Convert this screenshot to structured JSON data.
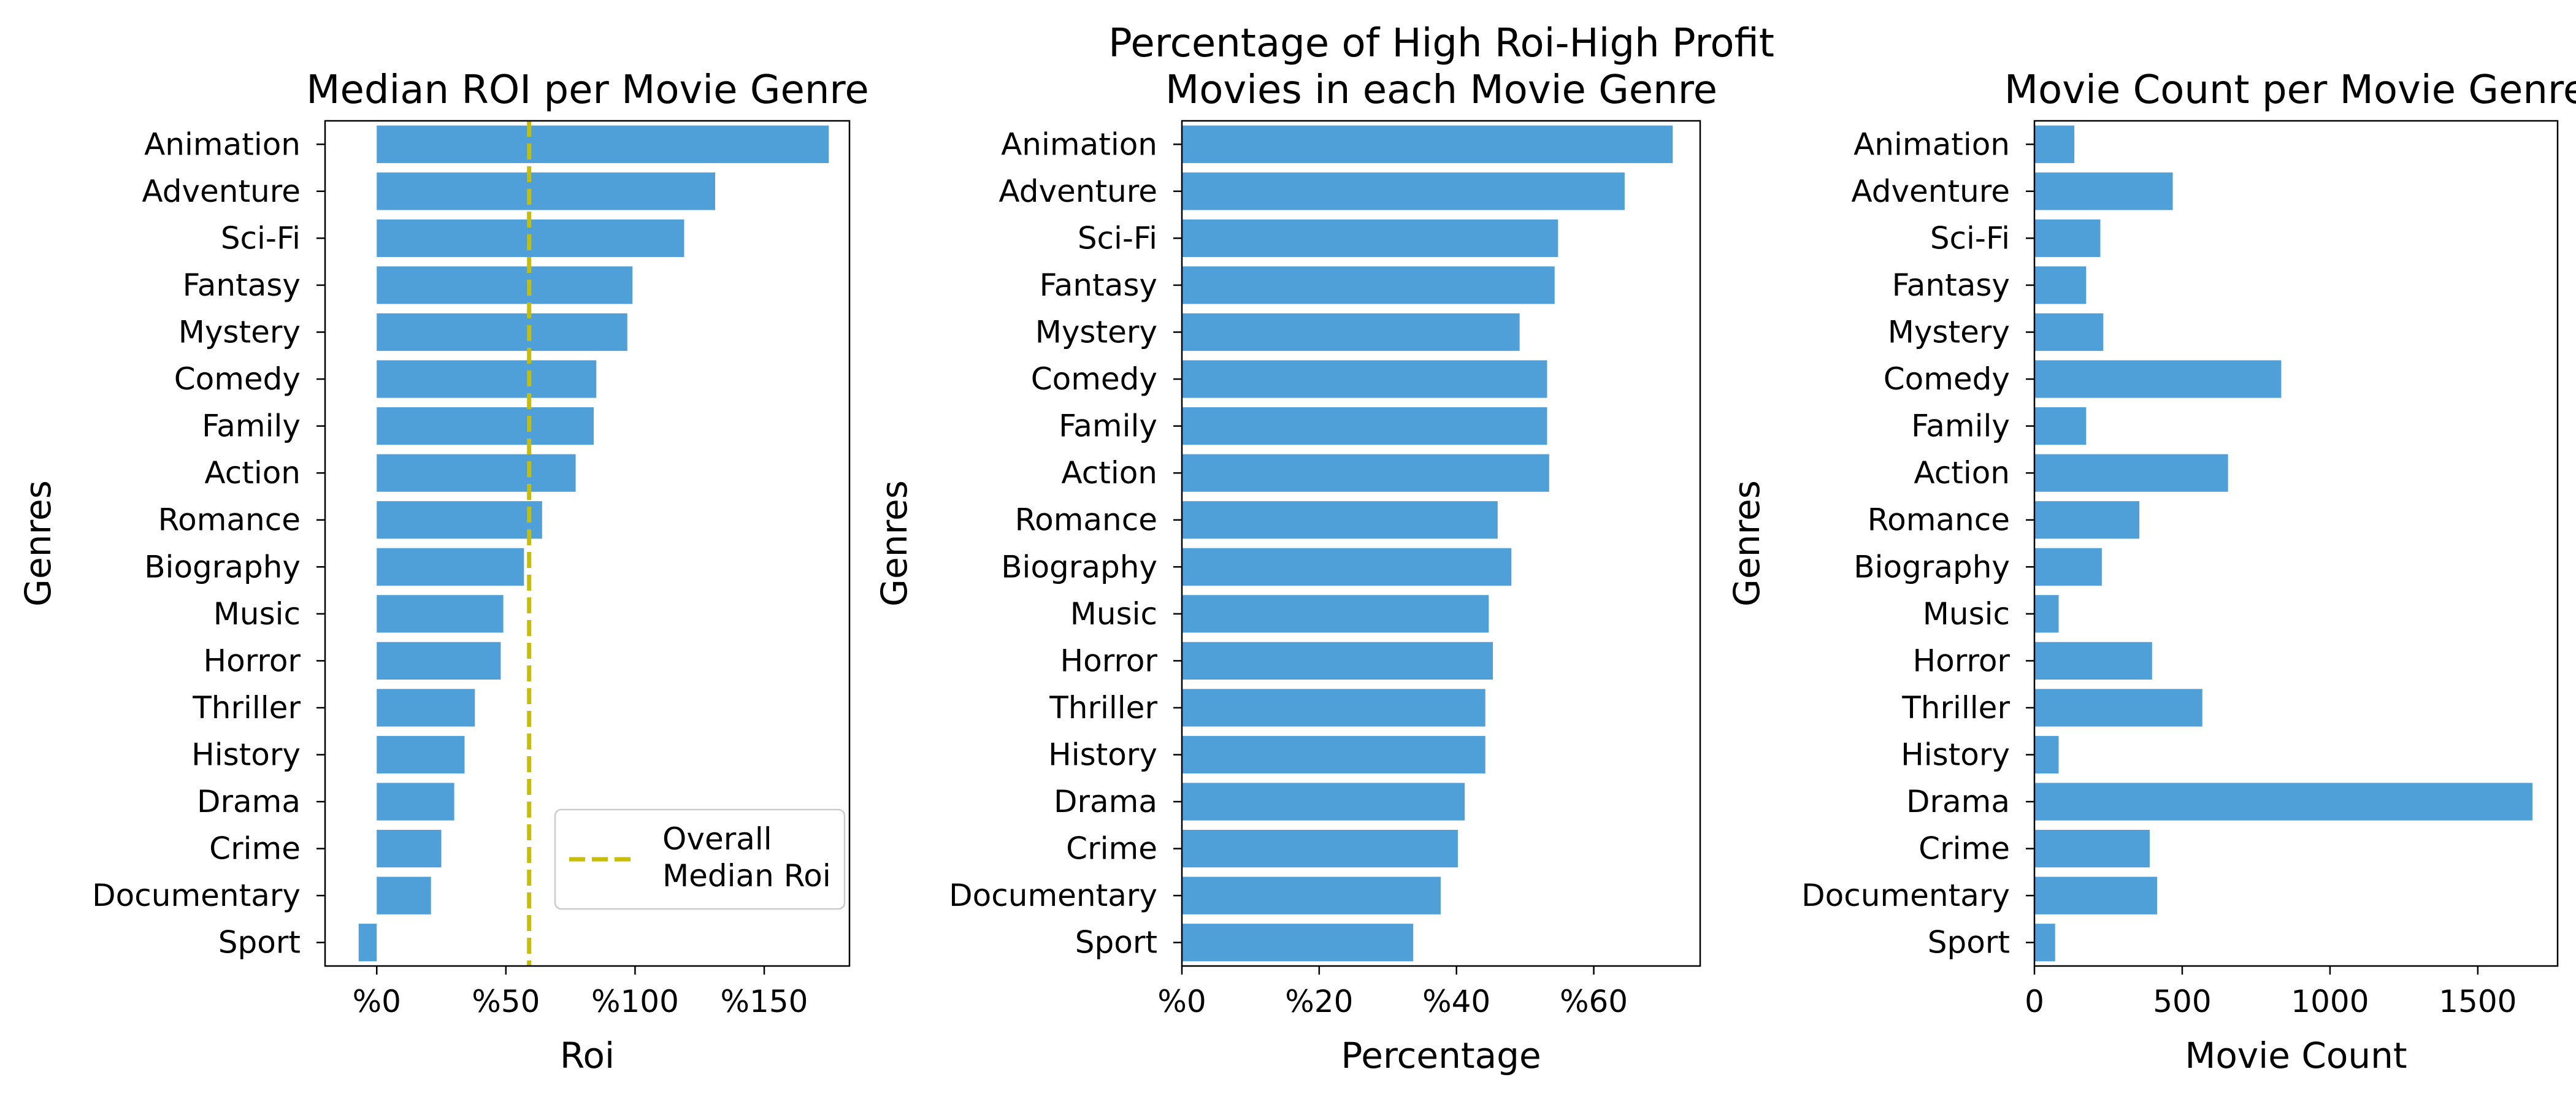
{
  "chart_data": [
    {
      "type": "bar",
      "orientation": "horizontal",
      "title": "Median ROI per Movie Genre",
      "xlabel": "Roi",
      "ylabel": "Genres",
      "categories": [
        "Animation",
        "Adventure",
        "Sci-Fi",
        "Fantasy",
        "Mystery",
        "Comedy",
        "Family",
        "Action",
        "Romance",
        "Biography",
        "Music",
        "Horror",
        "Thriller",
        "History",
        "Drama",
        "Crime",
        "Documentary",
        "Sport"
      ],
      "values": [
        175,
        131,
        119,
        99,
        97,
        85,
        84,
        77,
        64,
        57,
        49,
        48,
        38,
        34,
        30,
        25,
        21,
        -7
      ],
      "xlim": [
        -20,
        183
      ],
      "xticks": [
        0,
        50,
        100,
        150
      ],
      "xtick_labels": [
        "%0",
        "%50",
        "%100",
        "%150"
      ],
      "reference_line": {
        "value": 59,
        "label": "Overall\nMedian Roi",
        "color": "#c8be00",
        "style": "dashed"
      },
      "legend_position": "lower right",
      "bar_color": "#4f9fd9",
      "grid": false
    },
    {
      "type": "bar",
      "orientation": "horizontal",
      "title": "Percentage of High Roi-High Profit\nMovies in each Movie Genre",
      "xlabel": "Percentage",
      "ylabel": "Genres",
      "categories": [
        "Animation",
        "Adventure",
        "Sci-Fi",
        "Fantasy",
        "Mystery",
        "Comedy",
        "Family",
        "Action",
        "Romance",
        "Biography",
        "Music",
        "Horror",
        "Thriller",
        "History",
        "Drama",
        "Crime",
        "Documentary",
        "Sport"
      ],
      "values": [
        71.5,
        64.5,
        54.8,
        54.3,
        49.2,
        53.2,
        53.2,
        53.5,
        46.0,
        48.0,
        44.7,
        45.3,
        44.2,
        44.2,
        41.2,
        40.2,
        37.7,
        33.7
      ],
      "xlim": [
        0,
        75.5
      ],
      "xticks": [
        0,
        20,
        40,
        60
      ],
      "xtick_labels": [
        "%0",
        "%20",
        "%40",
        "%60"
      ],
      "bar_color": "#4f9fd9",
      "grid": false
    },
    {
      "type": "bar",
      "orientation": "horizontal",
      "title": "Movie Count per Movie Genre",
      "xlabel": "Movie Count",
      "ylabel": "Genres",
      "categories": [
        "Animation",
        "Adventure",
        "Sci-Fi",
        "Fantasy",
        "Mystery",
        "Comedy",
        "Family",
        "Action",
        "Romance",
        "Biography",
        "Music",
        "Horror",
        "Thriller",
        "History",
        "Drama",
        "Crime",
        "Documentary",
        "Sport"
      ],
      "values": [
        135,
        468,
        223,
        175,
        233,
        835,
        175,
        655,
        355,
        228,
        82,
        398,
        568,
        82,
        1685,
        390,
        415,
        70
      ],
      "xlim": [
        0,
        1770
      ],
      "xticks": [
        0,
        500,
        1000,
        1500
      ],
      "xtick_labels": [
        "0",
        "500",
        "1000",
        "1500"
      ],
      "bar_color": "#4f9fd9",
      "grid": false
    }
  ]
}
